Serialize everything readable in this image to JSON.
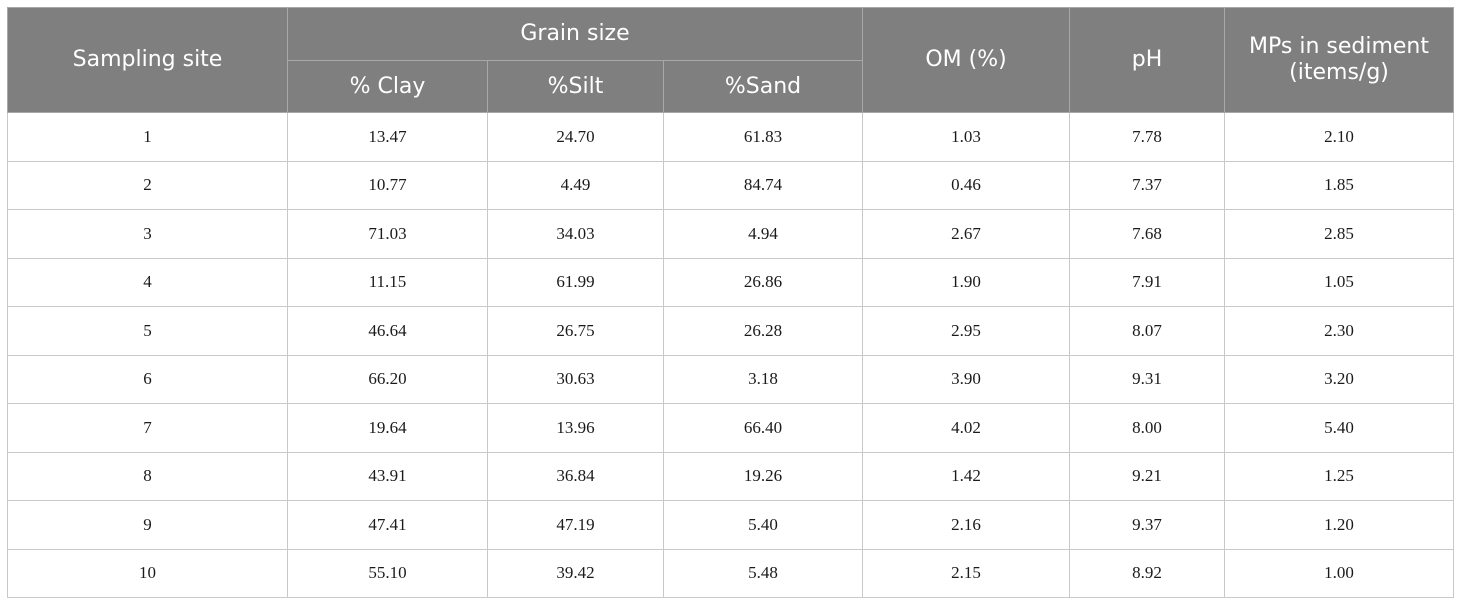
{
  "headers": {
    "sampling_site": "Sampling site",
    "grain_size": "Grain size",
    "clay": "% Clay",
    "silt": "%Silt",
    "sand": "%Sand",
    "om": "OM (%)",
    "ph": "pH",
    "mps_line1": "MPs in sediment",
    "mps_line2": "(items/g)"
  },
  "rows": [
    [
      "1",
      "13.47",
      "24.70",
      "61.83",
      "1.03",
      "7.78",
      "2.10"
    ],
    [
      "2",
      "10.77",
      "4.49",
      "84.74",
      "0.46",
      "7.37",
      "1.85"
    ],
    [
      "3",
      "71.03",
      "34.03",
      "4.94",
      "2.67",
      "7.68",
      "2.85"
    ],
    [
      "4",
      "11.15",
      "61.99",
      "26.86",
      "1.90",
      "7.91",
      "1.05"
    ],
    [
      "5",
      "46.64",
      "26.75",
      "26.28",
      "2.95",
      "8.07",
      "2.30"
    ],
    [
      "6",
      "66.20",
      "30.63",
      "3.18",
      "3.90",
      "9.31",
      "3.20"
    ],
    [
      "7",
      "19.64",
      "13.96",
      "66.40",
      "4.02",
      "8.00",
      "5.40"
    ],
    [
      "8",
      "43.91",
      "36.84",
      "19.26",
      "1.42",
      "9.21",
      "1.25"
    ],
    [
      "9",
      "47.41",
      "47.19",
      "5.40",
      "2.16",
      "9.37",
      "1.20"
    ],
    [
      "10",
      "55.10",
      "39.42",
      "5.48",
      "2.15",
      "8.92",
      "1.00"
    ]
  ],
  "colors": {
    "header_background": "#7f7f7f",
    "header_text": "#ffffff",
    "grid_line": "#c9c9c9"
  }
}
